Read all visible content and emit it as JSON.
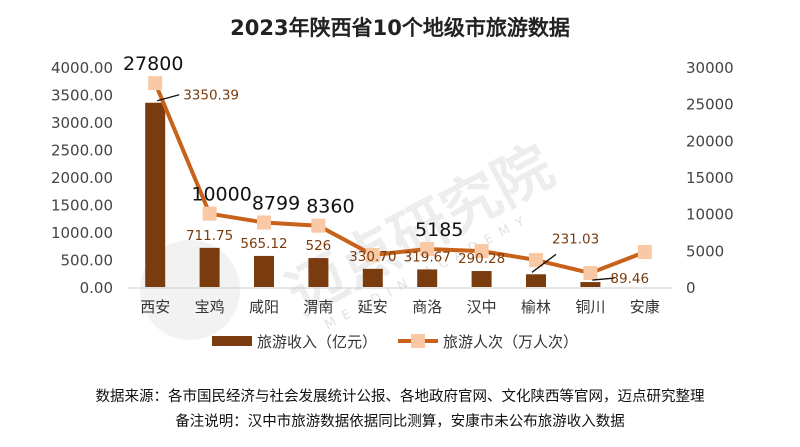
{
  "chart_data": {
    "type": "bar+line",
    "title": "2023年陕西省10个地级市旅游数据",
    "categories": [
      "西安",
      "宝鸡",
      "咸阳",
      "渭南",
      "延安",
      "商洛",
      "汉中",
      "榆林",
      "铜川",
      "安康"
    ],
    "series": [
      {
        "name": "旅游收入（亿元）",
        "type": "bar",
        "axis": "left",
        "color": "#7A3C0E",
        "values": [
          3350.39,
          711.75,
          565.12,
          526,
          330.7,
          319.67,
          290.28,
          231.03,
          89.46,
          null
        ],
        "labels": [
          "3350.39",
          "711.75",
          "565.12",
          "526",
          "330.70",
          "319.67",
          "290.28",
          "231.03",
          "89.46",
          ""
        ]
      },
      {
        "name": "旅游人次（万人次）",
        "type": "line",
        "axis": "right",
        "color": "#C8621A",
        "marker_color": "#F8C9A4",
        "values": [
          27800,
          10000,
          8799,
          8360,
          4360,
          5185,
          4900,
          3680,
          1900,
          4770
        ],
        "labels": [
          "27800",
          "10000",
          "8799",
          "8360",
          "",
          "5185",
          "",
          "",
          "",
          ""
        ]
      }
    ],
    "y_left": {
      "range": [
        0,
        4000
      ],
      "ticks": [
        "0.00",
        "500.00",
        "1000.00",
        "1500.00",
        "2000.00",
        "2500.00",
        "3000.00",
        "3500.00",
        "4000.00"
      ]
    },
    "y_right": {
      "range": [
        0,
        30000
      ],
      "ticks": [
        "0",
        "5000",
        "10000",
        "15000",
        "20000",
        "25000",
        "30000"
      ]
    },
    "grid": false,
    "legend": "bottom"
  },
  "watermark": "迈点研究院 MEADIN ACADEMY",
  "notes": {
    "source": "数据来源：各市国民经济与社会发展统计公报、各地政府官网、文化陕西等官网，迈点研究整理",
    "remark": "备注说明：汉中市旅游数据依据同比测算，安康市未公布旅游收入数据"
  }
}
